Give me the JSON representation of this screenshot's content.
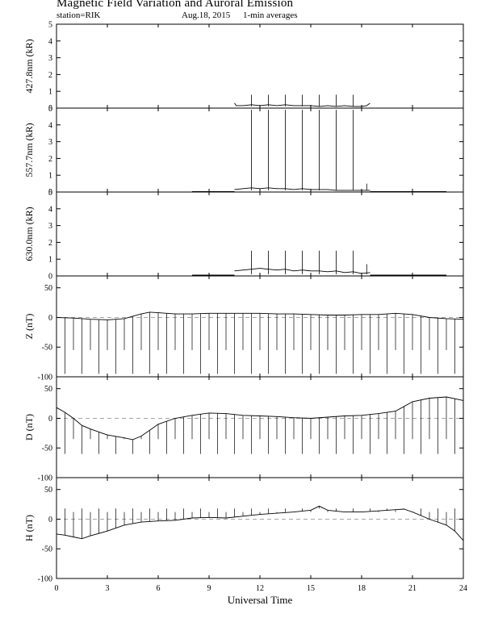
{
  "header": {
    "title": "Magnetic Field Variation and Auroral Emission",
    "station": "station=RIK",
    "date": "Aug.18, 2015",
    "averaging": "1-min averages"
  },
  "chart_data": [
    {
      "type": "line",
      "ylabel": "427.8nm (kR)",
      "ylim": [
        0,
        5
      ],
      "yticks": [
        0,
        1,
        2,
        3,
        4,
        5
      ],
      "baseline": null,
      "xlim": [
        0,
        24
      ],
      "segments": [
        {
          "x": [
            10.5,
            10.6,
            11.0,
            11.5,
            12.0,
            12.5,
            13.0,
            13.5,
            14.0,
            14.5,
            15.0,
            15.5,
            16.0,
            16.5,
            17.0,
            17.5,
            18.0,
            18.3,
            18.5
          ],
          "y": [
            0.3,
            0.15,
            0.15,
            0.2,
            0.15,
            0.2,
            0.15,
            0.2,
            0.15,
            0.15,
            0.15,
            0.1,
            0.15,
            0.1,
            0.15,
            0.1,
            0.1,
            0.15,
            0.3
          ]
        }
      ],
      "spikes": [
        {
          "x": 11.5,
          "y": 0.8
        },
        {
          "x": 12.5,
          "y": 0.8
        },
        {
          "x": 13.5,
          "y": 0.8
        },
        {
          "x": 14.5,
          "y": 0.8
        },
        {
          "x": 15.5,
          "y": 0.8
        },
        {
          "x": 16.5,
          "y": 0.8
        },
        {
          "x": 17.5,
          "y": 0.8
        }
      ]
    },
    {
      "type": "line",
      "ylabel": "557.7nm (kR)",
      "ylim": [
        0,
        5
      ],
      "yticks": [
        0,
        1,
        2,
        3,
        4,
        5
      ],
      "baseline": null,
      "xlim": [
        0,
        24
      ],
      "segments": [
        {
          "x": [
            8.0,
            10.5
          ],
          "y": [
            0.03,
            0.03
          ]
        },
        {
          "x": [
            10.5,
            11.0,
            11.5,
            12.0,
            12.5,
            13.0,
            13.5,
            14.0,
            14.5,
            15.0,
            15.5,
            16.0,
            16.5,
            17.0,
            17.5,
            18.0,
            18.5
          ],
          "y": [
            0.15,
            0.2,
            0.25,
            0.2,
            0.25,
            0.2,
            0.2,
            0.15,
            0.2,
            0.15,
            0.15,
            0.15,
            0.1,
            0.1,
            0.1,
            0.1,
            0.1
          ]
        },
        {
          "x": [
            18.5,
            23.0
          ],
          "y": [
            0.03,
            0.03
          ]
        }
      ],
      "spikes": [
        {
          "x": 11.5,
          "y": 4.9
        },
        {
          "x": 12.5,
          "y": 4.9
        },
        {
          "x": 13.5,
          "y": 4.9
        },
        {
          "x": 14.5,
          "y": 4.9
        },
        {
          "x": 15.5,
          "y": 4.9
        },
        {
          "x": 16.5,
          "y": 4.9
        },
        {
          "x": 17.5,
          "y": 4.9
        },
        {
          "x": 18.3,
          "y": 0.5
        }
      ]
    },
    {
      "type": "line",
      "ylabel": "630.0nm (kR)",
      "ylim": [
        0,
        5
      ],
      "yticks": [
        0,
        1,
        2,
        3,
        4,
        5
      ],
      "baseline": null,
      "xlim": [
        0,
        24
      ],
      "segments": [
        {
          "x": [
            8.0,
            10.5
          ],
          "y": [
            0.05,
            0.05
          ]
        },
        {
          "x": [
            10.5,
            11.0,
            11.5,
            12.0,
            12.5,
            13.0,
            13.5,
            14.0,
            14.5,
            15.0,
            15.5,
            16.0,
            16.5,
            17.0,
            17.5,
            18.0,
            18.5
          ],
          "y": [
            0.3,
            0.35,
            0.4,
            0.45,
            0.4,
            0.35,
            0.4,
            0.3,
            0.35,
            0.3,
            0.3,
            0.25,
            0.3,
            0.2,
            0.25,
            0.15,
            0.2
          ]
        },
        {
          "x": [
            18.5,
            23.0
          ],
          "y": [
            0.05,
            0.05
          ]
        }
      ],
      "spikes": [
        {
          "x": 11.5,
          "y": 1.5
        },
        {
          "x": 12.5,
          "y": 1.5
        },
        {
          "x": 13.5,
          "y": 1.5
        },
        {
          "x": 14.5,
          "y": 1.5
        },
        {
          "x": 15.5,
          "y": 1.5
        },
        {
          "x": 16.5,
          "y": 1.5
        },
        {
          "x": 17.5,
          "y": 1.5
        },
        {
          "x": 18.3,
          "y": 0.7
        }
      ]
    },
    {
      "type": "line",
      "ylabel": "Z (nT)",
      "ylim": [
        -100,
        70
      ],
      "yticks": [
        -100,
        -50,
        0,
        50
      ],
      "baseline": 0,
      "xlim": [
        0,
        24
      ],
      "segments": [
        {
          "x": [
            0,
            1,
            2,
            3,
            4,
            5,
            5.5,
            6,
            7,
            8,
            9,
            10,
            11,
            12,
            13,
            14,
            15,
            16,
            17,
            18,
            19,
            20,
            21,
            22,
            23,
            24
          ],
          "y": [
            0,
            -1,
            -3,
            -4,
            -2,
            6,
            9,
            8,
            6,
            6,
            7,
            7,
            7,
            7,
            6,
            6,
            5,
            4,
            4,
            5,
            5,
            7,
            5,
            0,
            -2,
            -3
          ]
        }
      ],
      "spike_series": {
        "start": 0.5,
        "step": 0.5,
        "count": 47,
        "y": -55,
        "long_y": -95
      }
    },
    {
      "type": "line",
      "ylabel": "D (nT)",
      "ylim": [
        -100,
        70
      ],
      "yticks": [
        -100,
        -50,
        0,
        50
      ],
      "baseline": 0,
      "xlim": [
        0,
        24
      ],
      "segments": [
        {
          "x": [
            0,
            0.5,
            1,
            1.5,
            2,
            3,
            4,
            4.5,
            5,
            5.5,
            6,
            7,
            8,
            9,
            10,
            11,
            12,
            13,
            14,
            15,
            16,
            17,
            18,
            19,
            20,
            20.5,
            21,
            22,
            23,
            24
          ],
          "y": [
            18,
            10,
            0,
            -12,
            -18,
            -28,
            -33,
            -36,
            -30,
            -20,
            -10,
            0,
            5,
            9,
            8,
            5,
            4,
            3,
            1,
            0,
            2,
            4,
            5,
            8,
            12,
            20,
            28,
            34,
            36,
            30
          ]
        }
      ],
      "spike_series": {
        "start": 0.5,
        "step": 0.5,
        "count": 47,
        "y": -35,
        "long_y": -60
      }
    },
    {
      "type": "line",
      "ylabel": "H (nT)",
      "ylim": [
        -100,
        70
      ],
      "yticks": [
        -100,
        -50,
        0,
        50
      ],
      "baseline": 0,
      "xlim": [
        0,
        24
      ],
      "segments": [
        {
          "x": [
            0,
            0.5,
            1,
            1.5,
            2,
            3,
            4,
            5,
            6,
            7,
            8,
            9,
            10,
            11,
            12,
            13,
            14,
            15,
            15.5,
            16,
            17,
            18,
            19,
            20,
            20.5,
            21,
            22,
            23,
            23.5,
            24
          ],
          "y": [
            -25,
            -27,
            -30,
            -33,
            -28,
            -20,
            -10,
            -5,
            -3,
            -2,
            2,
            3,
            2,
            5,
            8,
            10,
            12,
            15,
            22,
            15,
            12,
            12,
            14,
            16,
            17,
            12,
            0,
            -10,
            -20,
            -36
          ]
        }
      ],
      "spike_series": {
        "start": 0.5,
        "step": 0.5,
        "count": 47,
        "y": 12,
        "long_y": 18
      }
    }
  ],
  "xaxis": {
    "label": "Universal Time",
    "ticks": [
      0,
      3,
      6,
      9,
      12,
      15,
      18,
      21,
      24
    ]
  }
}
